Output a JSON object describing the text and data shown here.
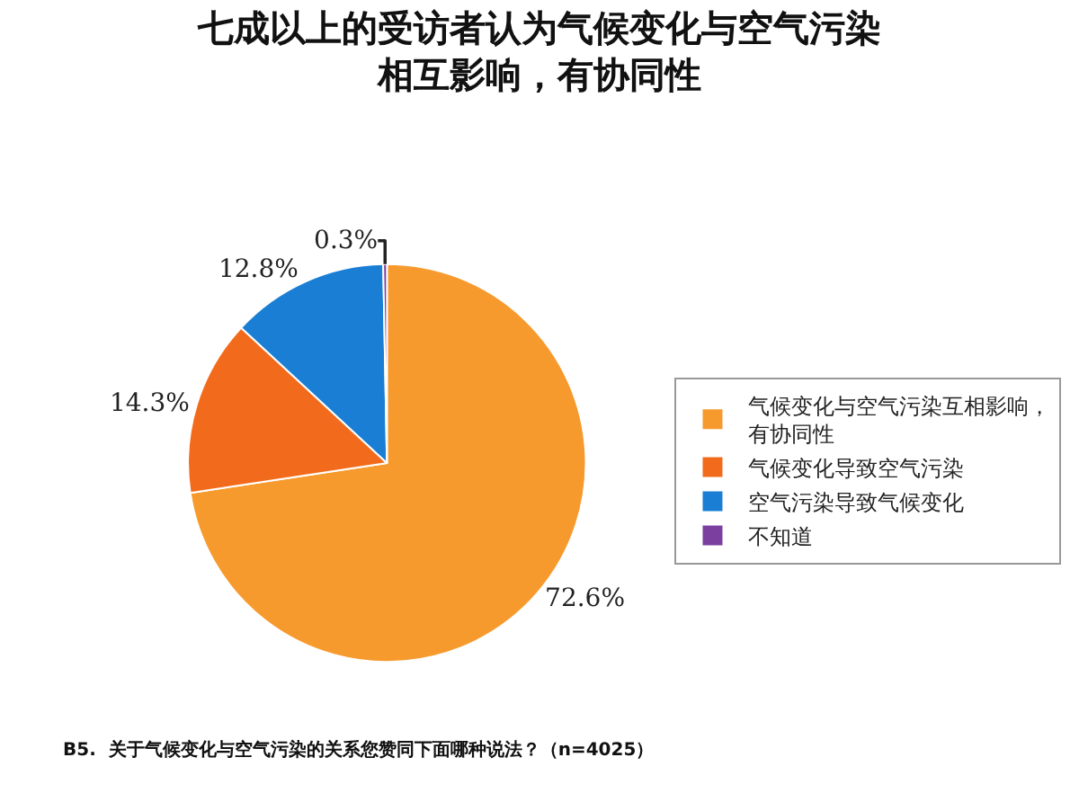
{
  "chart_data": {
    "type": "pie",
    "title": "七成以上的受访者认为气候变化与空气污染相互影响，有协同性",
    "categories": [
      "气候变化与空气污染互相影响，有协同性",
      "气候变化导致空气污染",
      "空气污染导致气候变化",
      "不知道"
    ],
    "values": [
      72.6,
      14.3,
      12.8,
      0.3
    ],
    "colors": [
      "#f79a2e",
      "#f26b1d",
      "#1a7fd4",
      "#7b3fa0"
    ],
    "value_labels": [
      "72.6%",
      "14.3%",
      "12.8%",
      "0.3%"
    ],
    "legend": "right",
    "annotations": [
      "B5.  关于气候变化与空气污染的关系您赞同下面哪种说法？（n=4025）"
    ]
  }
}
